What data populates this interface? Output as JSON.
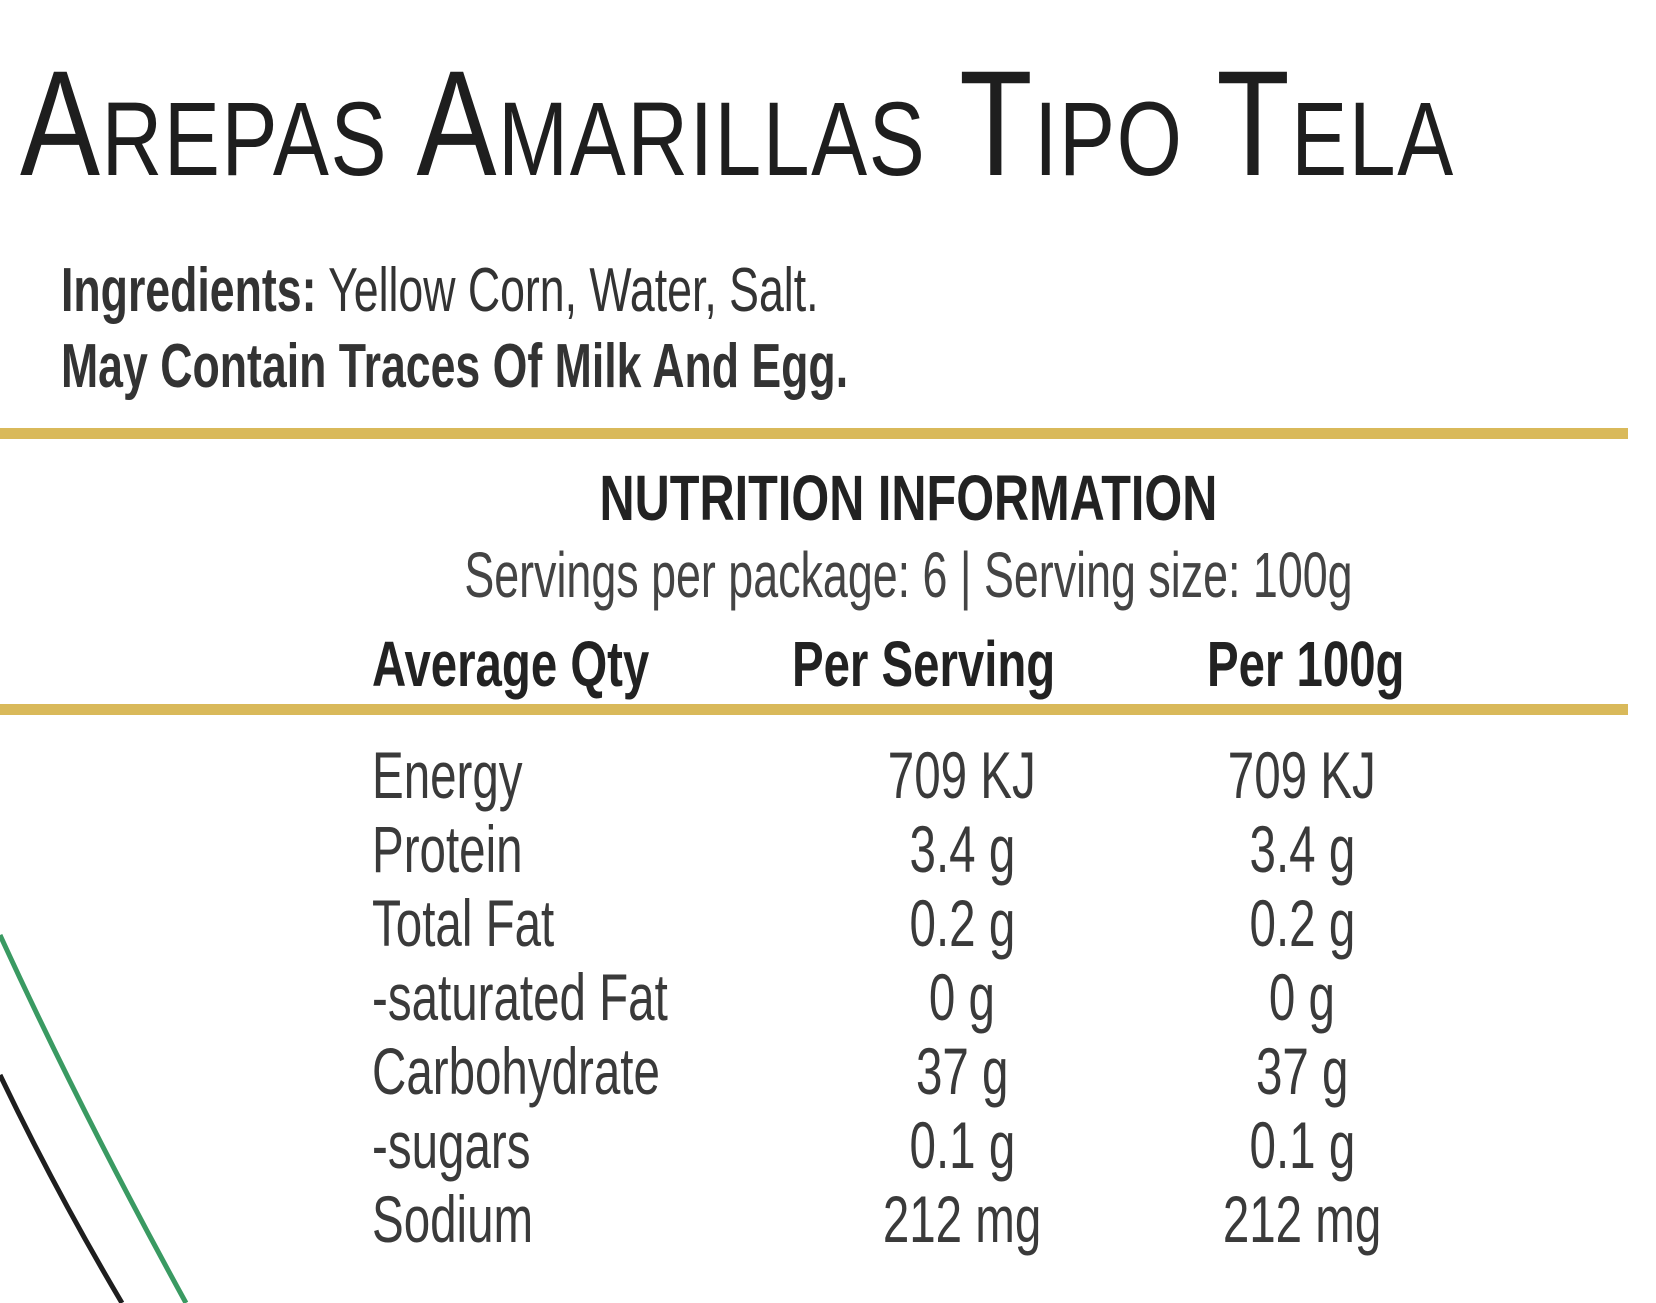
{
  "title": "Arepas Amarillas Tipo Tela",
  "ingredients": {
    "label": "Ingredients:",
    "text": "Yellow Corn, Water, Salt.",
    "allergens": "May Contain Traces Of Milk And Egg."
  },
  "nutrition": {
    "heading": "NUTRITION INFORMATION",
    "servings": "Servings per package: 6 | Serving size: 100g",
    "columns": [
      "Average Qty",
      "Per Serving",
      "Per 100g"
    ],
    "rows": [
      {
        "name": "Energy",
        "per_serving": "709 KJ",
        "per_100g": "709 KJ"
      },
      {
        "name": "Protein",
        "per_serving": "3.4 g",
        "per_100g": "3.4 g"
      },
      {
        "name": "Total Fat",
        "per_serving": "0.2 g",
        "per_100g": "0.2 g"
      },
      {
        "name": "-saturated Fat",
        "per_serving": "0 g",
        "per_100g": "0 g"
      },
      {
        "name": "Carbohydrate",
        "per_serving": "37 g",
        "per_100g": "37 g"
      },
      {
        "name": "-sugars",
        "per_serving": "0.1 g",
        "per_100g": "0.1 g"
      },
      {
        "name": "Sodium",
        "per_serving": "212 mg",
        "per_100g": "212 mg"
      }
    ]
  },
  "colors": {
    "rule": "#d9b95a",
    "curve_green": "#3a9a62",
    "curve_black": "#1e1e1e"
  }
}
